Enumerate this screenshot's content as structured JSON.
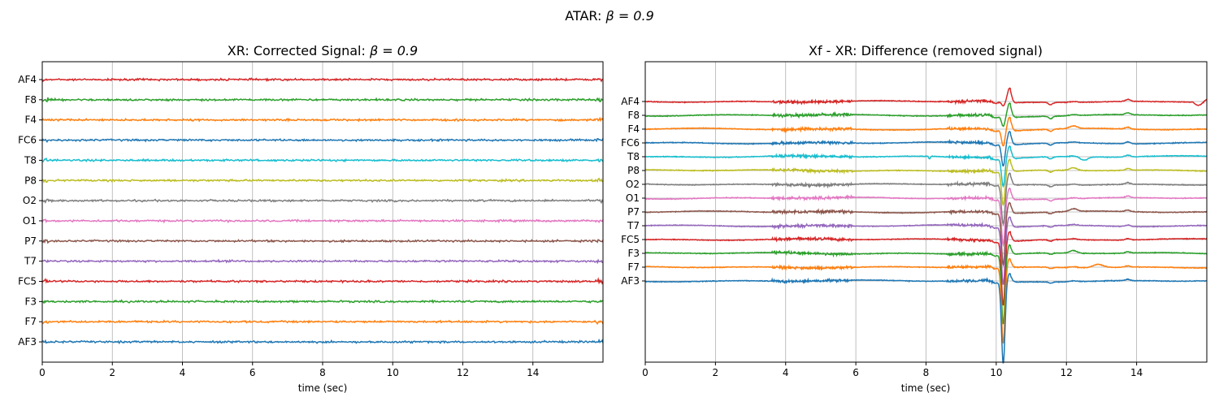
{
  "figure": {
    "suptitle_prefix": "ATAR: ",
    "suptitle_math": "β = 0.9"
  },
  "chart_data": [
    {
      "type": "line",
      "title_prefix": "XR: Corrected Signal: ",
      "title_math": "β = 0.9",
      "xlabel": "time (sec)",
      "ylabel": "",
      "xlim": [
        0,
        16
      ],
      "xticks": [
        0,
        2,
        4,
        6,
        8,
        10,
        12,
        14
      ],
      "grid": "x",
      "channels": [
        "AF4",
        "F8",
        "F4",
        "FC6",
        "T8",
        "P8",
        "O2",
        "O1",
        "P7",
        "T7",
        "FC5",
        "F3",
        "F7",
        "AF3"
      ],
      "colors": [
        "#d62728",
        "#2ca02c",
        "#ff7f0e",
        "#1f77b4",
        "#17becf",
        "#bcbd22",
        "#7f7f7f",
        "#e377c2",
        "#8c564b",
        "#9467bd",
        "#d62728",
        "#2ca02c",
        "#ff7f0e",
        "#1f77b4"
      ]
    },
    {
      "type": "line",
      "title": "Xf - XR: Difference (removed signal)",
      "xlabel": "time (sec)",
      "ylabel": "",
      "xlim": [
        0,
        16
      ],
      "xticks": [
        0,
        2,
        4,
        6,
        8,
        10,
        12,
        14
      ],
      "grid": "both",
      "channels": [
        "AF4",
        "F8",
        "F4",
        "FC6",
        "T8",
        "P8",
        "O2",
        "O1",
        "P7",
        "T7",
        "FC5",
        "F3",
        "F7",
        "AF3"
      ],
      "colors": [
        "#d62728",
        "#2ca02c",
        "#ff7f0e",
        "#1f77b4",
        "#17becf",
        "#bcbd22",
        "#7f7f7f",
        "#e377c2",
        "#8c564b",
        "#9467bd",
        "#d62728",
        "#2ca02c",
        "#ff7f0e",
        "#1f77b4"
      ],
      "artifact_time": 10.2
    }
  ]
}
